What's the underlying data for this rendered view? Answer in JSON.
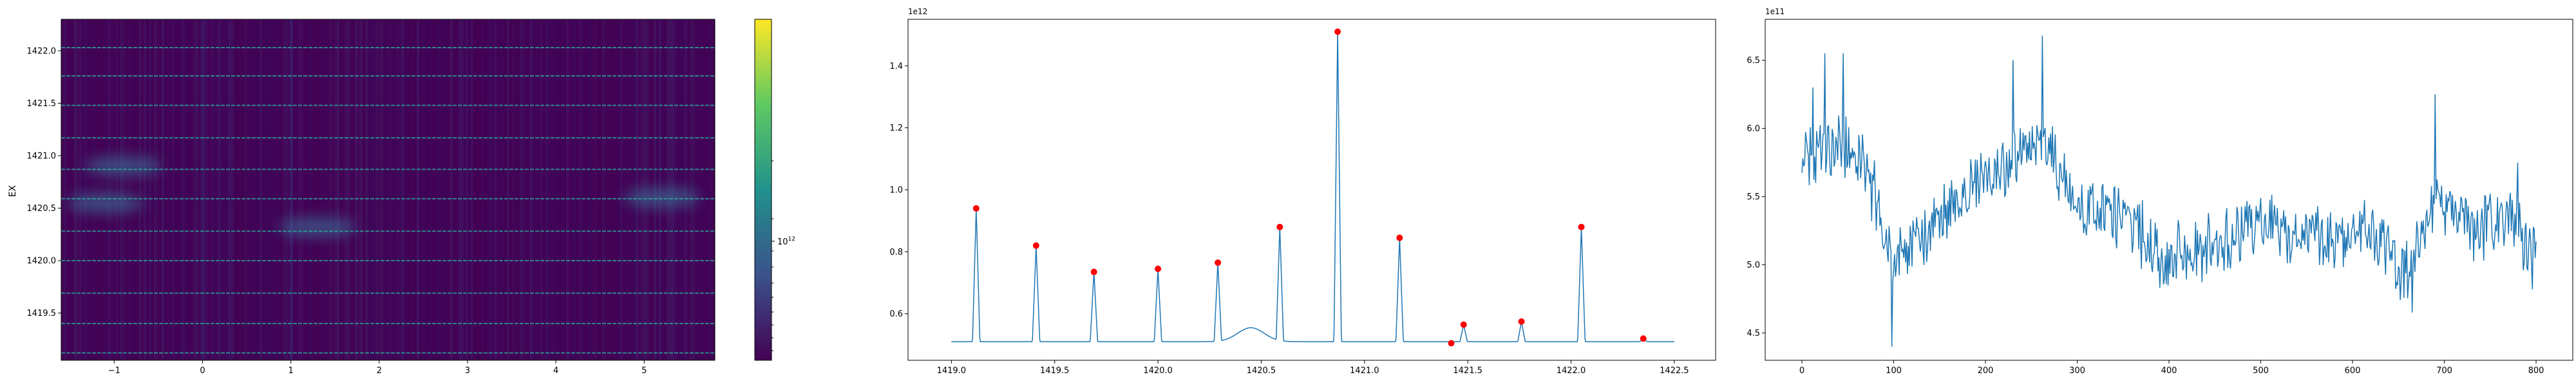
{
  "chart_data": [
    {
      "type": "heatmap",
      "ylabel": "EX",
      "xticks": [
        "−1",
        "0",
        "1",
        "2",
        "3",
        "4",
        "5"
      ],
      "xtick_values": [
        -1,
        0,
        1,
        2,
        3,
        4,
        5
      ],
      "xlim": [
        -1.6,
        5.8
      ],
      "yticks": [
        "1419.5",
        "1420.0",
        "1420.5",
        "1421.0",
        "1421.5",
        "1422.0"
      ],
      "ytick_values": [
        1419.5,
        1420.0,
        1420.5,
        1421.0,
        1421.5,
        1422.0
      ],
      "ylim": [
        1419.05,
        1422.3
      ],
      "colormap": "viridis",
      "colorbar": {
        "tick_label": "10",
        "tick_exponent": "12",
        "scale": "log"
      },
      "bright_rows_y": [
        1419.12,
        1419.4,
        1419.69,
        1420.0,
        1420.28,
        1420.59,
        1420.87,
        1421.17,
        1421.48,
        1421.76,
        1422.03
      ],
      "glow_blobs": [
        {
          "x": -1.1,
          "y": 1420.55
        },
        {
          "x": -0.9,
          "y": 1420.9
        },
        {
          "x": 1.3,
          "y": 1420.32
        },
        {
          "x": 5.2,
          "y": 1420.6
        }
      ],
      "colors": {
        "background": "#440154",
        "row_line": "#2ab0a0",
        "glow": "#3b7ea0"
      }
    },
    {
      "type": "line",
      "offset_label": "1e12",
      "xticks": [
        "1419.0",
        "1419.5",
        "1420.0",
        "1420.5",
        "1421.0",
        "1421.5",
        "1422.0",
        "1422.5"
      ],
      "xtick_values": [
        1419.0,
        1419.5,
        1420.0,
        1420.5,
        1421.0,
        1421.5,
        1422.0,
        1422.5
      ],
      "xlim": [
        1418.79,
        1422.7
      ],
      "yticks": [
        "0.6",
        "0.8",
        "1.0",
        "1.2",
        "1.4"
      ],
      "ytick_values": [
        0.6,
        0.8,
        1.0,
        1.2,
        1.4
      ],
      "ylim": [
        0.45,
        1.55
      ],
      "baseline": 0.51,
      "bump": {
        "center": 1420.45,
        "width": 0.09,
        "height": 0.045
      },
      "peaks": [
        {
          "x": 1419.12,
          "y": 0.94
        },
        {
          "x": 1419.41,
          "y": 0.82
        },
        {
          "x": 1419.69,
          "y": 0.735
        },
        {
          "x": 1420.0,
          "y": 0.745
        },
        {
          "x": 1420.29,
          "y": 0.765
        },
        {
          "x": 1420.59,
          "y": 0.88
        },
        {
          "x": 1420.87,
          "y": 1.51
        },
        {
          "x": 1421.17,
          "y": 0.845
        },
        {
          "x": 1421.48,
          "y": 0.565
        },
        {
          "x": 1421.76,
          "y": 0.575
        },
        {
          "x": 1422.05,
          "y": 0.88
        },
        {
          "x": 1422.35,
          "y": 0.52
        }
      ],
      "extra_markers": [
        {
          "x": 1421.42,
          "y": 0.505
        }
      ],
      "colors": {
        "line": "#1f77b4",
        "marker": "#ff0000"
      }
    },
    {
      "type": "line",
      "offset_label": "1e11",
      "xticks": [
        "0",
        "100",
        "200",
        "300",
        "400",
        "500",
        "600",
        "700",
        "800"
      ],
      "xtick_values": [
        0,
        100,
        200,
        300,
        400,
        500,
        600,
        700,
        800
      ],
      "xlim": [
        -40,
        840
      ],
      "yticks": [
        "4.5",
        "5.0",
        "5.5",
        "6.0",
        "6.5"
      ],
      "ytick_values": [
        4.5,
        5.0,
        5.5,
        6.0,
        6.5
      ],
      "ylim": [
        4.3,
        6.8
      ],
      "n_points": 801,
      "trend_knots": [
        {
          "x": 0,
          "y": 5.75
        },
        {
          "x": 40,
          "y": 5.9
        },
        {
          "x": 70,
          "y": 5.7
        },
        {
          "x": 100,
          "y": 5.0
        },
        {
          "x": 140,
          "y": 5.25
        },
        {
          "x": 190,
          "y": 5.6
        },
        {
          "x": 230,
          "y": 5.75
        },
        {
          "x": 265,
          "y": 5.9
        },
        {
          "x": 300,
          "y": 5.4
        },
        {
          "x": 350,
          "y": 5.35
        },
        {
          "x": 400,
          "y": 5.05
        },
        {
          "x": 450,
          "y": 5.15
        },
        {
          "x": 500,
          "y": 5.3
        },
        {
          "x": 560,
          "y": 5.2
        },
        {
          "x": 620,
          "y": 5.25
        },
        {
          "x": 660,
          "y": 4.9
        },
        {
          "x": 690,
          "y": 5.5
        },
        {
          "x": 730,
          "y": 5.25
        },
        {
          "x": 770,
          "y": 5.4
        },
        {
          "x": 800,
          "y": 5.0
        }
      ],
      "noise_amplitude": 0.28,
      "extremes": [
        {
          "x": 12,
          "y": 6.3
        },
        {
          "x": 25,
          "y": 6.55
        },
        {
          "x": 45,
          "y": 6.55
        },
        {
          "x": 98,
          "y": 4.4
        },
        {
          "x": 262,
          "y": 6.68
        },
        {
          "x": 230,
          "y": 6.5
        },
        {
          "x": 690,
          "y": 6.25
        },
        {
          "x": 665,
          "y": 4.65
        },
        {
          "x": 780,
          "y": 5.75
        }
      ],
      "colors": {
        "line": "#1f77b4"
      }
    }
  ]
}
